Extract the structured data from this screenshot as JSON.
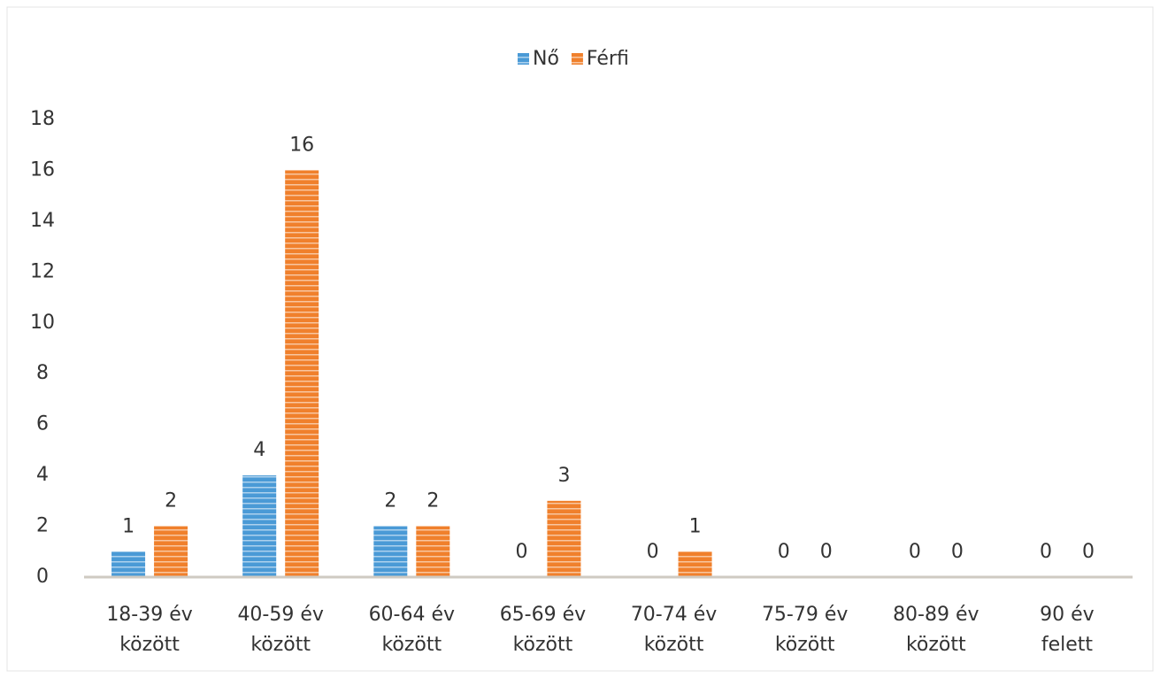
{
  "chart_data": {
    "type": "bar",
    "categories": [
      [
        "18-39 év",
        "között"
      ],
      [
        "40-59 év",
        "között"
      ],
      [
        "60-64 év",
        "között"
      ],
      [
        "65-69 év",
        "között"
      ],
      [
        "70-74 év",
        "között"
      ],
      [
        "75-79 év",
        "között"
      ],
      [
        "80-89 év",
        "között"
      ],
      [
        "90 év",
        "felett"
      ]
    ],
    "series": [
      {
        "name": "Nő",
        "color": "#4a9ad6",
        "values": [
          1,
          4,
          2,
          0,
          0,
          0,
          0,
          0
        ]
      },
      {
        "name": "Férfi",
        "color": "#f0802c",
        "values": [
          2,
          16,
          2,
          3,
          1,
          0,
          0,
          0
        ]
      }
    ],
    "ylim": [
      0,
      18
    ],
    "yticks": [
      0,
      2,
      4,
      6,
      8,
      10,
      12,
      14,
      16,
      18
    ],
    "grid": false,
    "legend": "top"
  }
}
